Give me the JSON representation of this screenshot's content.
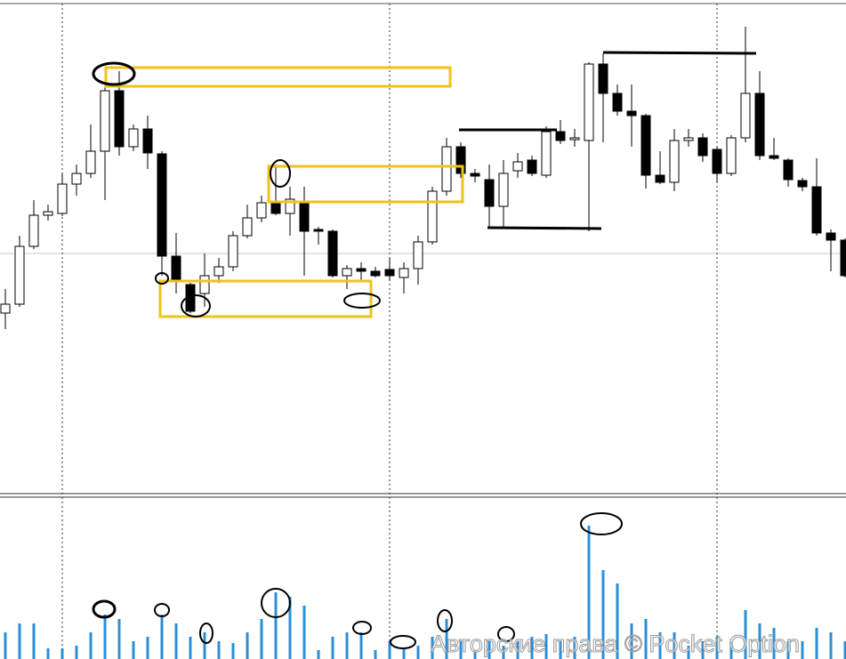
{
  "chart_data": {
    "type": "candlestick",
    "open": [
      203,
      213,
      278,
      313,
      315,
      348,
      360,
      385,
      453,
      390,
      410,
      382,
      267,
      235,
      225,
      245,
      255,
      290,
      310,
      327,
      315,
      329,
      297,
      295,
      245,
      253,
      250,
      252,
      243,
      253,
      283,
      340,
      390,
      360,
      353,
      323,
      363,
      375,
      358,
      407,
      398,
      397,
      483,
      450,
      430,
      425,
      358,
      350,
      397,
      400,
      387,
      360,
      400,
      450,
      380,
      375,
      352,
      345,
      293,
      285
    ],
    "high": [
      230,
      290,
      330,
      325,
      360,
      370,
      415,
      470,
      475,
      415,
      425,
      385,
      293,
      237,
      270,
      265,
      295,
      325,
      335,
      370,
      345,
      345,
      300,
      297,
      257,
      260,
      255,
      265,
      260,
      290,
      345,
      400,
      395,
      365,
      370,
      375,
      383,
      380,
      413,
      420,
      410,
      485,
      495,
      460,
      460,
      427,
      385,
      410,
      410,
      405,
      390,
      403,
      525,
      475,
      400,
      377,
      355,
      377,
      297,
      287
    ],
    "low": [
      185,
      210,
      275,
      307,
      312,
      335,
      355,
      330,
      380,
      385,
      365,
      245,
      225,
      203,
      210,
      237,
      250,
      287,
      305,
      313,
      290,
      245,
      280,
      243,
      230,
      240,
      243,
      240,
      225,
      235,
      280,
      335,
      355,
      350,
      300,
      300,
      355,
      357,
      355,
      393,
      390,
      295,
      395,
      425,
      390,
      343,
      348,
      340,
      390,
      373,
      350,
      357,
      395,
      375,
      375,
      345,
      340,
      290,
      250,
      243
    ],
    "close": [
      213,
      278,
      313,
      317,
      348,
      360,
      385,
      453,
      390,
      410,
      383,
      267,
      240,
      205,
      245,
      255,
      290,
      310,
      327,
      315,
      331,
      295,
      295,
      245,
      253,
      250,
      245,
      245,
      253,
      283,
      340,
      390,
      360,
      357,
      323,
      360,
      373,
      360,
      407,
      397,
      400,
      483,
      450,
      430,
      425,
      358,
      350,
      397,
      400,
      380,
      360,
      400,
      450,
      380,
      377,
      353,
      345,
      293,
      285,
      245
    ],
    "ylim": [
      0,
      555
    ],
    "up_color": "#ffffff",
    "down_color": "#000000",
    "volume": [
      30,
      40,
      40,
      12,
      12,
      15,
      30,
      50,
      45,
      20,
      25,
      50,
      40,
      25,
      30,
      20,
      18,
      30,
      45,
      75,
      70,
      60,
      10,
      25,
      30,
      30,
      10,
      20,
      12,
      15,
      25,
      45,
      20,
      10,
      20,
      15,
      20,
      25,
      28,
      20,
      25,
      150,
      100,
      85,
      40,
      45,
      30,
      30,
      15,
      20,
      25,
      20,
      55,
      40,
      35,
      20,
      20,
      35,
      30,
      20
    ],
    "volume_ylim": [
      0,
      180
    ],
    "volume_color": "#2b8fd8",
    "watermark": "Авторские права © Pocket Option"
  }
}
